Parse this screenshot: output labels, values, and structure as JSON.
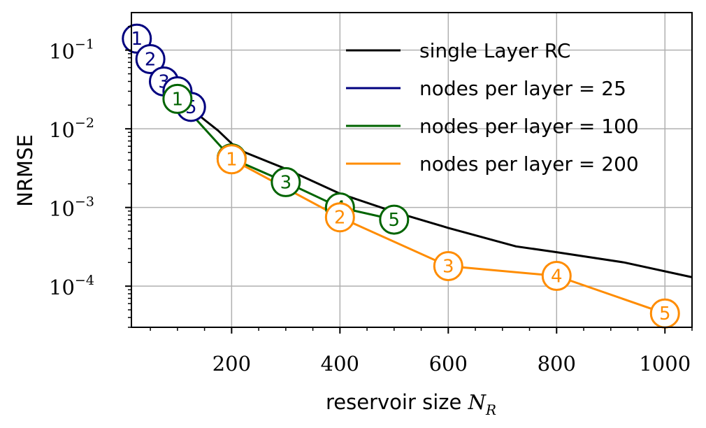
{
  "chart_data": {
    "type": "line",
    "xlabel_text": "reservoir size ",
    "xlabel_var": "N",
    "xlabel_sub": "R",
    "ylabel": "NRMSE",
    "xlim": [
      15,
      1050
    ],
    "ylim": [
      3e-05,
      0.3
    ],
    "yscale": "log",
    "grid": true,
    "legend_position": "top-right",
    "x_ticks": [
      {
        "value": 200,
        "label": "200"
      },
      {
        "value": 400,
        "label": "400"
      },
      {
        "value": 600,
        "label": "600"
      },
      {
        "value": 800,
        "label": "800"
      },
      {
        "value": 1000,
        "label": "1000"
      }
    ],
    "y_ticks": [
      {
        "value": 0.1,
        "base": "10",
        "exp": "−1"
      },
      {
        "value": 0.01,
        "base": "10",
        "exp": "−2"
      },
      {
        "value": 0.001,
        "base": "10",
        "exp": "−3"
      },
      {
        "value": 0.0001,
        "base": "10",
        "exp": "−4"
      }
    ],
    "series": [
      {
        "name": "single Layer RC",
        "color": "#000000",
        "markers": false,
        "points": [
          {
            "x": 25,
            "y": 0.21
          },
          {
            "x": 50,
            "y": 0.08
          },
          {
            "x": 75,
            "y": 0.045
          },
          {
            "x": 100,
            "y": 0.028
          },
          {
            "x": 125,
            "y": 0.018
          },
          {
            "x": 150,
            "y": 0.013
          },
          {
            "x": 175,
            "y": 0.0095
          },
          {
            "x": 200,
            "y": 0.0065
          },
          {
            "x": 225,
            "y": 0.005
          },
          {
            "x": 300,
            "y": 0.0031
          },
          {
            "x": 400,
            "y": 0.0015
          },
          {
            "x": 500,
            "y": 0.00088
          },
          {
            "x": 600,
            "y": 0.00055
          },
          {
            "x": 725,
            "y": 0.00032
          },
          {
            "x": 800,
            "y": 0.00027
          },
          {
            "x": 925,
            "y": 0.0002
          },
          {
            "x": 1050,
            "y": 0.00013
          }
        ]
      },
      {
        "name": "nodes per layer = 25",
        "color": "#00007f",
        "markers": true,
        "points": [
          {
            "x": 25,
            "y": 0.14,
            "label": "1"
          },
          {
            "x": 50,
            "y": 0.077,
            "label": "2"
          },
          {
            "x": 75,
            "y": 0.04,
            "label": "3"
          },
          {
            "x": 100,
            "y": 0.03,
            "label": "4"
          },
          {
            "x": 125,
            "y": 0.019,
            "label": "5"
          }
        ]
      },
      {
        "name": "nodes per layer = 100",
        "color": "#006400",
        "markers": true,
        "points": [
          {
            "x": 100,
            "y": 0.024,
            "label": "1"
          },
          {
            "x": 200,
            "y": 0.0042,
            "label": "2"
          },
          {
            "x": 300,
            "y": 0.0021,
            "label": "3"
          },
          {
            "x": 400,
            "y": 0.001,
            "label": "4"
          },
          {
            "x": 500,
            "y": 0.0007,
            "label": "5"
          }
        ]
      },
      {
        "name": "nodes per layer = 200",
        "color": "#ff8c00",
        "markers": true,
        "points": [
          {
            "x": 200,
            "y": 0.0041,
            "label": "1"
          },
          {
            "x": 400,
            "y": 0.00075,
            "label": "2"
          },
          {
            "x": 600,
            "y": 0.00018,
            "label": "3"
          },
          {
            "x": 800,
            "y": 0.000135,
            "label": "4"
          },
          {
            "x": 1000,
            "y": 4.5e-05,
            "label": "5"
          }
        ]
      }
    ]
  }
}
